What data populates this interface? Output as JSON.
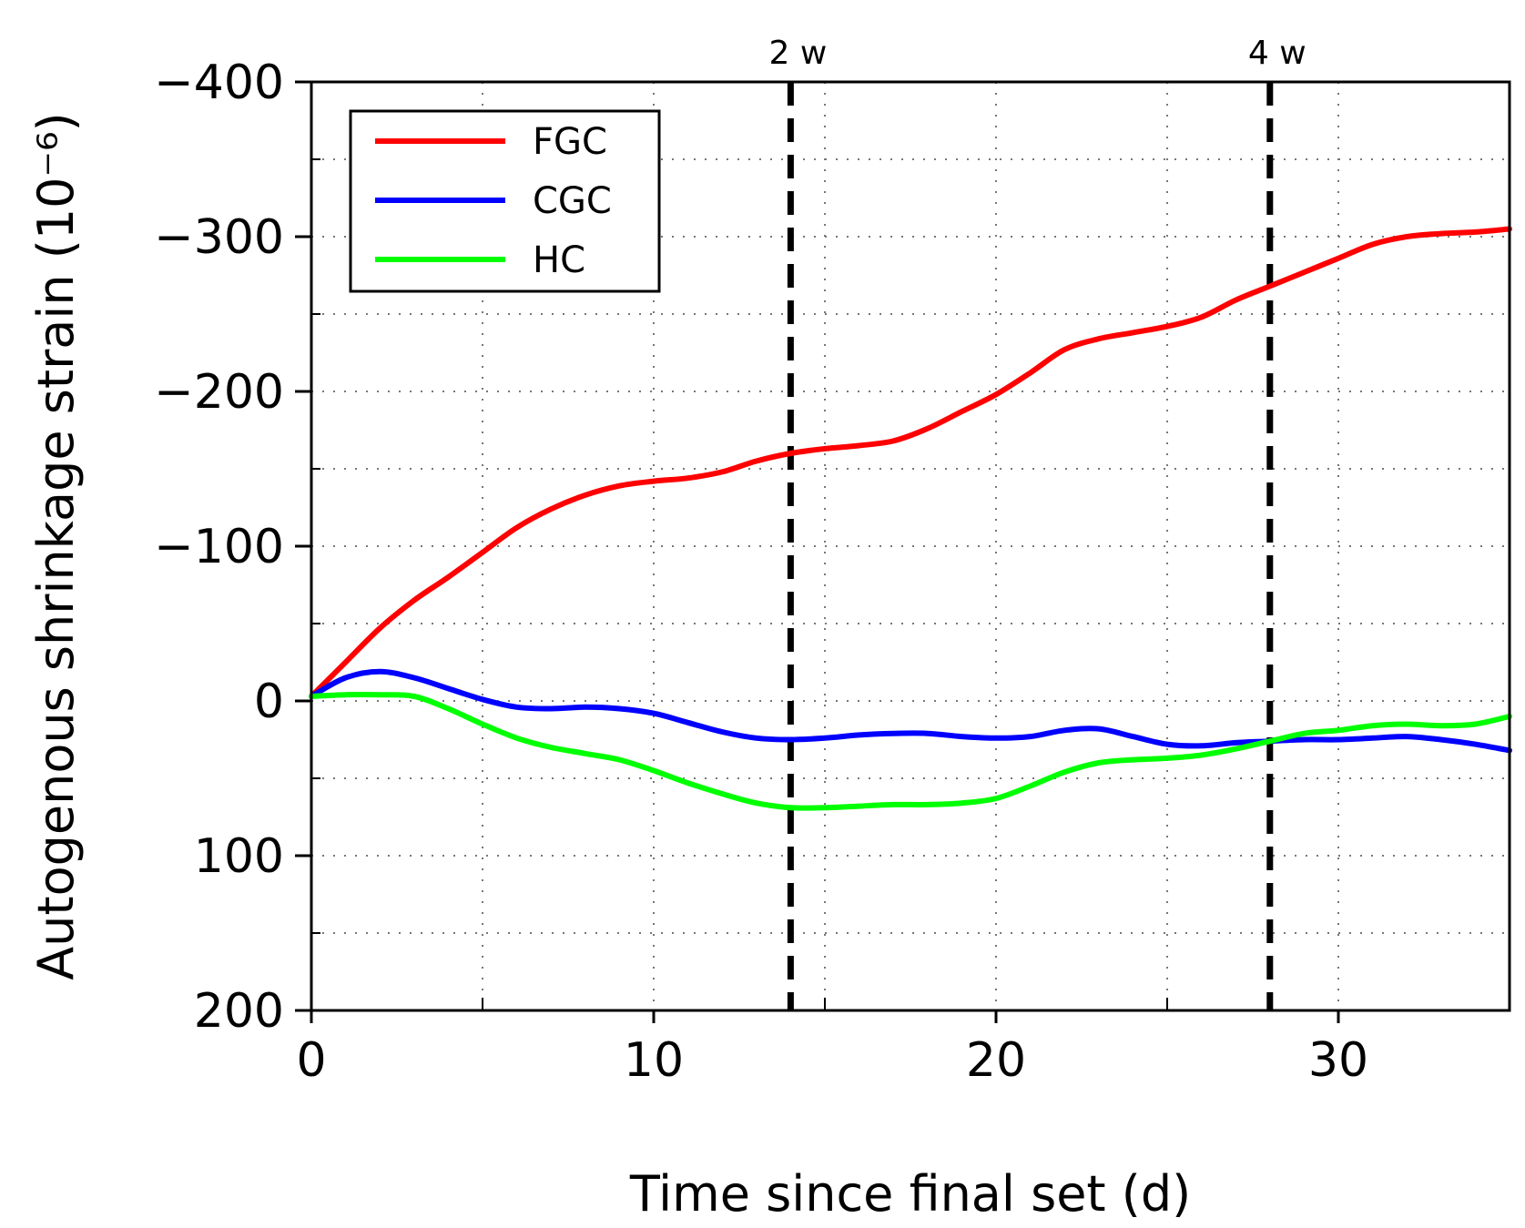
{
  "chart_data": {
    "type": "line",
    "xlabel": "Time since final set (d)",
    "ylabel": "Autogenous shrinkage strain (10⁻⁶)",
    "xlim": [
      0,
      35
    ],
    "ylim": [
      200,
      -400
    ],
    "x_ticks": [
      0,
      10,
      20,
      30
    ],
    "x_tick_labels": [
      "0",
      "10",
      "20",
      "30"
    ],
    "y_ticks": [
      -400,
      -300,
      -200,
      -100,
      0,
      100,
      200
    ],
    "y_tick_labels": [
      "−400",
      "−300",
      "−200",
      "−100",
      "0",
      "100",
      "200"
    ],
    "grid": true,
    "legend_position": "top-left",
    "markers": [
      {
        "x": 14,
        "label": "2 w"
      },
      {
        "x": 28,
        "label": "4 w"
      }
    ],
    "series": [
      {
        "name": "FGC",
        "color": "#ff0000",
        "x": [
          0,
          1,
          2,
          3,
          4,
          5,
          6,
          7,
          8,
          9,
          10,
          11,
          12,
          13,
          14,
          15,
          16,
          17,
          18,
          19,
          20,
          21,
          22,
          23,
          24,
          25,
          26,
          27,
          28,
          29,
          30,
          31,
          32,
          33,
          34,
          35
        ],
        "y": [
          -3,
          -25,
          -47,
          -65,
          -80,
          -96,
          -112,
          -124,
          -133,
          -139,
          -142,
          -144,
          -148,
          -155,
          -160,
          -163,
          -165,
          -168,
          -176,
          -187,
          -198,
          -212,
          -227,
          -234,
          -238,
          -242,
          -248,
          -259,
          -268,
          -277,
          -286,
          -295,
          -300,
          -302,
          -303,
          -305
        ]
      },
      {
        "name": "CGC",
        "color": "#0000ff",
        "x": [
          0,
          1,
          2,
          3,
          4,
          5,
          6,
          7,
          8,
          9,
          10,
          11,
          12,
          13,
          14,
          15,
          16,
          17,
          18,
          19,
          20,
          21,
          22,
          23,
          24,
          25,
          26,
          27,
          28,
          29,
          30,
          31,
          32,
          33,
          34,
          35
        ],
        "y": [
          -3,
          -15,
          -19,
          -15,
          -8,
          -1,
          4,
          5,
          4,
          5,
          8,
          14,
          20,
          24,
          25,
          24,
          22,
          21,
          21,
          23,
          24,
          23,
          19,
          18,
          23,
          28,
          29,
          27,
          26,
          25,
          25,
          24,
          23,
          25,
          28,
          32
        ]
      },
      {
        "name": "HC",
        "color": "#00ff00",
        "x": [
          0,
          1,
          2,
          3,
          4,
          5,
          6,
          7,
          8,
          9,
          10,
          11,
          12,
          13,
          14,
          15,
          16,
          17,
          18,
          19,
          20,
          21,
          22,
          23,
          24,
          25,
          26,
          27,
          28,
          29,
          30,
          31,
          32,
          33,
          34,
          35
        ],
        "y": [
          -3,
          -4,
          -4,
          -3,
          5,
          15,
          24,
          30,
          34,
          38,
          45,
          53,
          60,
          66,
          69,
          69,
          68,
          67,
          67,
          66,
          63,
          55,
          46,
          40,
          38,
          37,
          35,
          31,
          26,
          21,
          19,
          16,
          15,
          16,
          15,
          10
        ]
      }
    ]
  }
}
